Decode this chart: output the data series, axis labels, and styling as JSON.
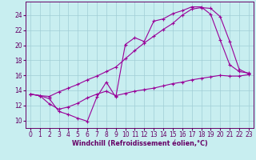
{
  "xlabel": "Windchill (Refroidissement éolien,°C)",
  "background_color": "#c8eef0",
  "grid_color": "#a0cdd5",
  "line_color": "#990099",
  "xlim": [
    -0.5,
    23.5
  ],
  "ylim": [
    9.0,
    25.8
  ],
  "xticks": [
    0,
    1,
    2,
    3,
    4,
    5,
    6,
    7,
    8,
    9,
    10,
    11,
    12,
    13,
    14,
    15,
    16,
    17,
    18,
    19,
    20,
    21,
    22,
    23
  ],
  "yticks": [
    10,
    12,
    14,
    16,
    18,
    20,
    22,
    24
  ],
  "line1_x": [
    0,
    1,
    2,
    3,
    4,
    5,
    6,
    7,
    8,
    9,
    10,
    11,
    12,
    13,
    14,
    15,
    16,
    17,
    18,
    19,
    20,
    21,
    22,
    23
  ],
  "line1_y": [
    13.5,
    13.3,
    12.9,
    11.2,
    10.8,
    10.3,
    9.9,
    13.1,
    15.1,
    13.1,
    20.1,
    21.0,
    20.5,
    23.2,
    23.5,
    24.2,
    24.6,
    25.1,
    25.1,
    24.1,
    20.7,
    17.4,
    16.5,
    16.3
  ],
  "line2_x": [
    0,
    1,
    2,
    3,
    4,
    5,
    6,
    7,
    8,
    9,
    10,
    11,
    12,
    13,
    14,
    15,
    16,
    17,
    18,
    19,
    20,
    21,
    22,
    23
  ],
  "line2_y": [
    13.5,
    13.3,
    13.2,
    13.8,
    14.3,
    14.8,
    15.4,
    15.9,
    16.5,
    17.1,
    18.2,
    19.3,
    20.3,
    21.2,
    22.1,
    22.9,
    24.0,
    24.8,
    25.0,
    24.9,
    23.8,
    20.5,
    16.8,
    16.2
  ],
  "line3_x": [
    0,
    1,
    2,
    3,
    4,
    5,
    6,
    7,
    8,
    9,
    10,
    11,
    12,
    13,
    14,
    15,
    16,
    17,
    18,
    19,
    20,
    21,
    22,
    23
  ],
  "line3_y": [
    13.5,
    13.3,
    12.2,
    11.5,
    11.8,
    12.3,
    13.0,
    13.5,
    13.9,
    13.3,
    13.6,
    13.9,
    14.1,
    14.3,
    14.6,
    14.9,
    15.1,
    15.4,
    15.6,
    15.8,
    16.0,
    15.9,
    15.9,
    16.1
  ],
  "tick_fontsize": 5.5,
  "xlabel_fontsize": 5.8,
  "marker_size": 2.5,
  "line_width": 0.8
}
